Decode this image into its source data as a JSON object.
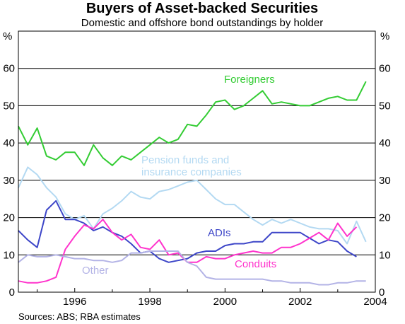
{
  "chart_data": {
    "type": "line",
    "title": "Buyers of Asset-backed Securities",
    "subtitle": "Domestic and offshore bond outstandings by holder",
    "ylabel_left": "%",
    "ylabel_right": "%",
    "source": "Sources: ABS; RBA estimates",
    "xlim": [
      1994.5,
      2004.0
    ],
    "ylim": [
      0,
      70
    ],
    "x_ticks": [
      1996,
      1998,
      2000,
      2002,
      2004
    ],
    "y_ticks": [
      0,
      10,
      20,
      30,
      40,
      50,
      60
    ],
    "grid": true,
    "series": [
      {
        "name": "Foreigners",
        "color": "#33cc33",
        "label_lines": [
          "Foreigners"
        ],
        "x": [
          1994.5,
          1994.75,
          1995.0,
          1995.25,
          1995.5,
          1995.75,
          1996.0,
          1996.25,
          1996.5,
          1996.75,
          1997.0,
          1997.25,
          1997.5,
          1997.75,
          1998.0,
          1998.25,
          1998.5,
          1998.75,
          1999.0,
          1999.25,
          1999.5,
          1999.75,
          2000.0,
          2000.25,
          2000.5,
          2000.75,
          2001.0,
          2001.25,
          2001.5,
          2001.75,
          2002.0,
          2002.25,
          2002.5,
          2002.75,
          2003.0,
          2003.25,
          2003.5,
          2003.75
        ],
        "values": [
          44.5,
          39.5,
          44,
          36.5,
          35.5,
          37.5,
          37.5,
          34,
          39.5,
          36,
          34,
          36.5,
          35.5,
          37.5,
          39.5,
          41.5,
          40,
          41,
          45,
          44.5,
          47.5,
          51,
          51.5,
          49,
          50,
          52,
          54,
          50.5,
          51,
          50.5,
          50,
          50,
          51,
          52,
          52.5,
          51.5,
          51.5,
          56.5
        ]
      },
      {
        "name": "Pension funds and insurance companies",
        "color": "#b3d9f2",
        "label_lines": [
          "Pension funds and",
          "insurance companies"
        ],
        "x": [
          1994.5,
          1994.75,
          1995.0,
          1995.25,
          1995.5,
          1995.75,
          1996.0,
          1996.25,
          1996.5,
          1996.75,
          1997.0,
          1997.25,
          1997.5,
          1997.75,
          1998.0,
          1998.25,
          1998.5,
          1998.75,
          1999.0,
          1999.25,
          1999.5,
          1999.75,
          2000.0,
          2000.25,
          2000.5,
          2000.75,
          2001.0,
          2001.25,
          2001.5,
          2001.75,
          2002.0,
          2002.25,
          2002.5,
          2002.75,
          2003.0,
          2003.25,
          2003.5,
          2003.75
        ],
        "values": [
          28,
          33.5,
          31.5,
          28,
          25.5,
          21,
          19.5,
          20.5,
          17,
          21,
          22.5,
          24.5,
          27,
          25.5,
          25,
          27,
          27.5,
          28.5,
          29.5,
          30,
          27.5,
          25,
          23.5,
          23.5,
          21.5,
          19.5,
          18,
          19.5,
          18.5,
          19.5,
          18.5,
          17.5,
          17,
          17,
          16.5,
          13,
          19,
          13.5
        ]
      },
      {
        "name": "ADIs",
        "color": "#3d46c8",
        "label_lines": [
          "ADIs"
        ],
        "x": [
          1994.5,
          1994.75,
          1995.0,
          1995.25,
          1995.5,
          1995.75,
          1996.0,
          1996.25,
          1996.5,
          1996.75,
          1997.0,
          1997.25,
          1997.5,
          1997.75,
          1998.0,
          1998.25,
          1998.5,
          1998.75,
          1999.0,
          1999.25,
          1999.5,
          1999.75,
          2000.0,
          2000.25,
          2000.5,
          2000.75,
          2001.0,
          2001.25,
          2001.5,
          2001.75,
          2002.0,
          2002.25,
          2002.5,
          2002.75,
          2003.0,
          2003.25,
          2003.5,
          2003.75
        ],
        "values": [
          16.5,
          14,
          12,
          22,
          24.5,
          19.5,
          19.5,
          18.5,
          16.5,
          17.5,
          16,
          15,
          13,
          10.5,
          11,
          9,
          8,
          8.5,
          9,
          10.5,
          11,
          11,
          12.5,
          13,
          13,
          13.5,
          13.5,
          16,
          16,
          16,
          16,
          14.5,
          13,
          14,
          13.5,
          11,
          9.5,
          null
        ]
      },
      {
        "name": "Conduits",
        "color": "#ff33cc",
        "label_lines": [
          "Conduits"
        ],
        "x": [
          1994.5,
          1994.75,
          1995.0,
          1995.25,
          1995.5,
          1995.75,
          1996.0,
          1996.25,
          1996.5,
          1996.75,
          1997.0,
          1997.25,
          1997.5,
          1997.75,
          1998.0,
          1998.25,
          1998.5,
          1998.75,
          1999.0,
          1999.25,
          1999.5,
          1999.75,
          2000.0,
          2000.25,
          2000.5,
          2000.75,
          2001.0,
          2001.25,
          2001.5,
          2001.75,
          2002.0,
          2002.25,
          2002.5,
          2002.75,
          2003.0,
          2003.25,
          2003.5,
          2003.75
        ],
        "values": [
          3,
          2.5,
          2.5,
          3,
          4,
          11.5,
          15,
          18,
          17,
          19.5,
          16,
          14,
          15.5,
          12,
          11.5,
          14,
          10,
          10.5,
          8,
          8,
          9.5,
          9,
          9,
          10,
          10.5,
          11,
          10.5,
          10.5,
          12,
          12,
          13,
          14.5,
          16,
          14,
          18.5,
          15,
          17.5,
          null
        ]
      },
      {
        "name": "Other",
        "color": "#b3b3e6",
        "label_lines": [
          "Other"
        ],
        "x": [
          1994.5,
          1994.75,
          1995.0,
          1995.25,
          1995.5,
          1995.75,
          1996.0,
          1996.25,
          1996.5,
          1996.75,
          1997.0,
          1997.25,
          1997.5,
          1997.75,
          1998.0,
          1998.25,
          1998.5,
          1998.75,
          1999.0,
          1999.25,
          1999.5,
          1999.75,
          2000.0,
          2000.25,
          2000.5,
          2000.75,
          2001.0,
          2001.25,
          2001.5,
          2001.75,
          2002.0,
          2002.25,
          2002.5,
          2002.75,
          2003.0,
          2003.25,
          2003.5,
          2003.75
        ],
        "values": [
          8,
          10,
          9.5,
          9.5,
          10,
          9.5,
          9,
          9,
          8.5,
          8.5,
          8,
          8.5,
          10.5,
          10.5,
          11,
          11,
          11,
          11,
          8,
          7,
          4,
          3.5,
          3.5,
          3.5,
          3.5,
          3.5,
          3.5,
          3,
          3,
          2.5,
          2.5,
          2.5,
          2,
          2,
          2.5,
          2.5,
          3,
          3
        ]
      }
    ]
  }
}
